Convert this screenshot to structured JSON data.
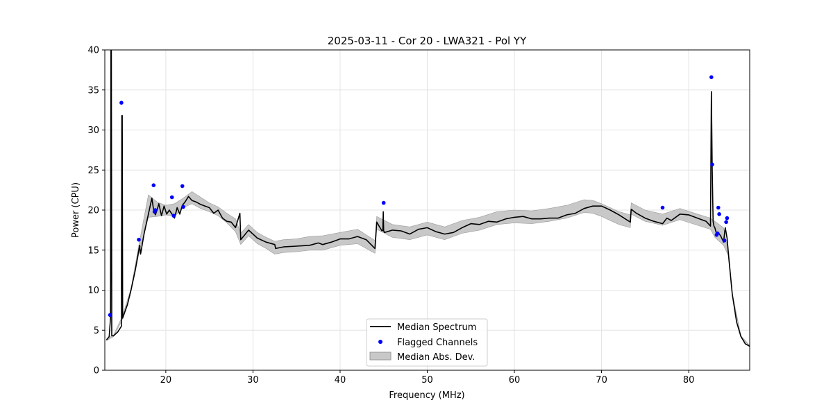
{
  "chart_data": {
    "type": "line",
    "title": "2025-03-11 - Cor 20 - LWA321 - Pol YY",
    "xlabel": "Frequency (MHz)",
    "ylabel": "Power (CPU)",
    "xlim": [
      13,
      87
    ],
    "ylim": [
      0,
      40
    ],
    "xticks": [
      20,
      30,
      40,
      50,
      60,
      70,
      80
    ],
    "yticks": [
      0,
      5,
      10,
      15,
      20,
      25,
      30,
      35,
      40
    ],
    "grid": true,
    "legend_position": "bottom-center",
    "legend": [
      {
        "label": "Median Spectrum",
        "kind": "line",
        "color": "#000000"
      },
      {
        "label": "Flagged Channels",
        "kind": "marker",
        "color": "#0000ff"
      },
      {
        "label": "Median Abs. Dev.",
        "kind": "patch",
        "color": "#c8c8c8"
      }
    ],
    "series": [
      {
        "name": "Median Spectrum",
        "color": "#000000",
        "x": [
          13.2,
          13.5,
          13.65,
          13.7,
          13.75,
          13.8,
          14.0,
          14.5,
          14.9,
          14.95,
          15.0,
          15.05,
          15.3,
          15.6,
          16.0,
          16.5,
          17.0,
          17.1,
          17.5,
          18.0,
          18.4,
          18.6,
          18.8,
          19.0,
          19.2,
          19.5,
          19.8,
          20.1,
          20.4,
          20.7,
          21.0,
          21.3,
          21.6,
          21.9,
          22.2,
          22.6,
          23.0,
          23.5,
          24.0,
          24.5,
          25.0,
          25.5,
          26.0,
          26.5,
          27.0,
          27.5,
          28.0,
          28.5,
          28.6,
          29.5,
          30.5,
          31.5,
          32.5,
          32.6,
          33.5,
          35.0,
          36.5,
          37.5,
          38.0,
          39.0,
          40.0,
          41.0,
          42.0,
          43.0,
          44.0,
          44.2,
          44.8,
          44.9,
          44.95,
          45.0,
          45.1,
          46.0,
          47.0,
          48.0,
          49.0,
          50.0,
          51.0,
          52.0,
          53.0,
          54.0,
          55.0,
          56.0,
          57.0,
          58.0,
          59.0,
          60.0,
          61.0,
          62.0,
          63.0,
          64.0,
          65.0,
          66.0,
          67.0,
          68.0,
          69.0,
          70.0,
          71.0,
          72.0,
          73.3,
          73.4,
          74.0,
          75.0,
          76.0,
          77.0,
          77.5,
          78.0,
          79.0,
          80.0,
          81.0,
          82.0,
          82.5,
          82.6,
          82.7,
          82.8,
          82.9,
          83.0,
          83.2,
          83.4,
          83.7,
          84.0,
          84.2,
          84.4,
          84.6,
          85.0,
          85.5,
          86.0,
          86.5,
          87.0
        ],
        "y": [
          3.8,
          4.2,
          6.5,
          40,
          40,
          4.3,
          4.3,
          4.8,
          5.5,
          31.8,
          31.8,
          6.5,
          7.3,
          8.2,
          10.0,
          12.5,
          15.6,
          14.5,
          17.0,
          19.5,
          21.5,
          20.0,
          19.4,
          20.0,
          20.8,
          19.3,
          20.5,
          19.5,
          20.0,
          19.5,
          19.0,
          20.3,
          19.5,
          20.6,
          21.0,
          21.7,
          21.2,
          21.0,
          20.7,
          20.5,
          20.3,
          19.6,
          20.0,
          19.0,
          18.6,
          18.5,
          17.8,
          19.6,
          16.3,
          17.5,
          16.5,
          16.0,
          15.7,
          15.2,
          15.4,
          15.5,
          15.6,
          15.9,
          15.7,
          16.0,
          16.4,
          16.4,
          16.7,
          16.3,
          15.2,
          18.5,
          17.4,
          17.5,
          19.8,
          17.4,
          17.2,
          17.5,
          17.4,
          17.0,
          17.6,
          17.8,
          17.3,
          17.0,
          17.2,
          17.8,
          18.3,
          18.2,
          18.6,
          18.5,
          18.9,
          19.1,
          19.2,
          18.9,
          18.9,
          19.0,
          19.0,
          19.4,
          19.6,
          20.2,
          20.5,
          20.5,
          20.0,
          19.4,
          18.5,
          20.1,
          19.6,
          19.0,
          18.6,
          18.3,
          19.0,
          18.7,
          19.5,
          19.4,
          19.0,
          18.6,
          18.0,
          34.8,
          25.0,
          18.6,
          18.0,
          17.8,
          17.0,
          17.2,
          16.7,
          16.0,
          17.8,
          16.5,
          14.0,
          9.5,
          6.0,
          4.2,
          3.3,
          3.0
        ]
      },
      {
        "name": "Flagged Channels",
        "color": "#0000ff",
        "x": [
          13.6,
          14.9,
          16.9,
          18.6,
          18.7,
          18.8,
          20.7,
          20.9,
          21.9,
          22.0,
          45.0,
          77.0,
          82.6,
          82.7,
          83.2,
          83.3,
          83.4,
          83.5,
          84.1,
          84.3,
          84.4
        ],
        "y": [
          6.9,
          33.4,
          16.3,
          23.1,
          19.8,
          20.0,
          21.6,
          19.3,
          23.0,
          20.4,
          20.9,
          20.3,
          36.6,
          25.7,
          16.9,
          17.1,
          20.3,
          19.5,
          16.2,
          18.5,
          19.0
        ]
      }
    ],
    "band": {
      "name": "Median Abs. Dev.",
      "color": "#c8c8c8",
      "x": [
        13.2,
        14.0,
        15.0,
        16.0,
        17.0,
        18.0,
        19.0,
        20.0,
        21.0,
        22.0,
        23.0,
        24.0,
        25.0,
        26.0,
        27.0,
        28.0,
        28.6,
        29.5,
        30.5,
        31.5,
        32.5,
        33.5,
        35.0,
        36.5,
        38.0,
        40.0,
        42.0,
        44.0,
        44.2,
        46.0,
        48.0,
        50.0,
        52.0,
        54.0,
        56.0,
        58.0,
        60.0,
        62.0,
        64.0,
        66.0,
        68.0,
        69.0,
        70.0,
        72.0,
        73.3,
        73.4,
        75.0,
        77.0,
        79.0,
        81.0,
        82.5,
        83.0,
        84.0,
        84.6,
        85.0,
        86.0,
        87.0
      ],
      "lower": [
        3.7,
        4.2,
        6.3,
        9.8,
        15.0,
        19.1,
        19.2,
        19.4,
        19.2,
        20.3,
        20.8,
        20.2,
        19.8,
        19.3,
        18.4,
        17.3,
        15.7,
        16.8,
        15.8,
        15.2,
        14.5,
        14.7,
        14.8,
        15.0,
        15.0,
        15.6,
        15.8,
        14.6,
        17.6,
        16.6,
        16.3,
        16.9,
        16.3,
        17.1,
        17.5,
        18.2,
        18.4,
        18.3,
        18.6,
        19.0,
        19.7,
        19.6,
        19.2,
        18.2,
        17.8,
        19.5,
        18.6,
        18.1,
        18.8,
        18.1,
        17.6,
        16.6,
        15.6,
        14.2,
        9.4,
        4.1,
        3.0
      ],
      "upper": [
        3.9,
        4.4,
        6.7,
        10.2,
        16.2,
        21.9,
        21.0,
        20.6,
        20.8,
        21.5,
        22.3,
        21.6,
        20.9,
        20.4,
        19.6,
        18.9,
        17.1,
        18.2,
        17.2,
        16.6,
        16.1,
        16.3,
        16.4,
        16.7,
        16.8,
        17.2,
        17.6,
        16.2,
        19.2,
        18.2,
        17.9,
        18.5,
        17.9,
        18.7,
        19.1,
        19.8,
        20.0,
        19.9,
        20.2,
        20.6,
        21.3,
        21.2,
        20.8,
        19.8,
        19.4,
        20.9,
        20.0,
        19.5,
        20.2,
        19.5,
        19.0,
        18.6,
        17.8,
        14.6,
        9.6,
        4.3,
        3.1
      ]
    }
  }
}
